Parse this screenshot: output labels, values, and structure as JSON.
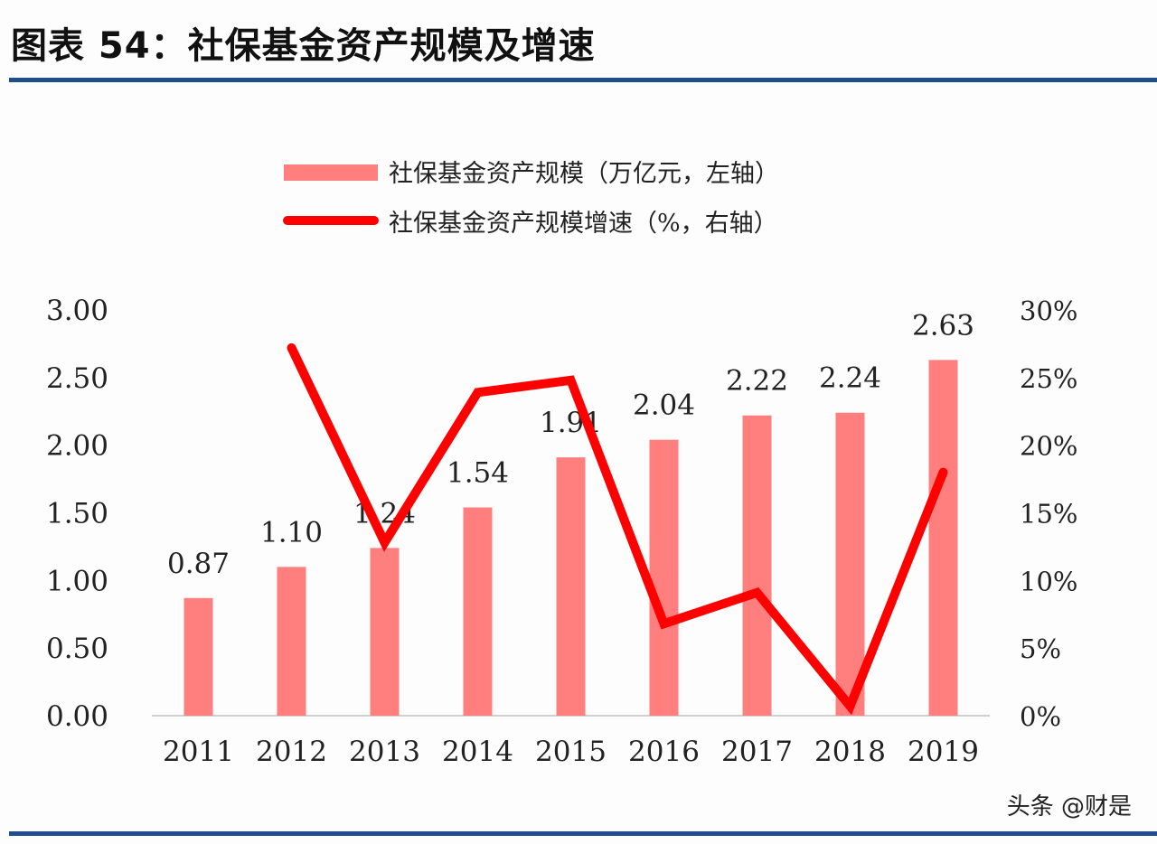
{
  "title": "图表 54：社保基金资产规模及增速",
  "watermark": "头条 @财是",
  "chart_data": {
    "type": "bar+line",
    "title": "",
    "categories": [
      "2011",
      "2012",
      "2013",
      "2014",
      "2015",
      "2016",
      "2017",
      "2018",
      "2019"
    ],
    "series": [
      {
        "name": "社保基金资产规模（万亿元，左轴）",
        "type": "bar",
        "axis": "left",
        "color": "#ff7f7f",
        "values": [
          0.87,
          1.1,
          1.24,
          1.54,
          1.91,
          2.04,
          2.22,
          2.24,
          2.63
        ],
        "labels": [
          "0.87",
          "1.10",
          "1.24",
          "1.54",
          "1.91",
          "2.04",
          "2.22",
          "2.24",
          "2.63"
        ]
      },
      {
        "name": "社保基金资产规模增速（%，右轴）",
        "type": "line",
        "axis": "right",
        "color": "#ff0000",
        "values": [
          null,
          27.2,
          12.8,
          23.9,
          24.8,
          6.8,
          9.1,
          0.7,
          18.0
        ]
      }
    ],
    "left_axis": {
      "ylim": [
        0,
        3
      ],
      "ticks": [
        "0.00",
        "0.50",
        "1.00",
        "1.50",
        "2.00",
        "2.50",
        "3.00"
      ]
    },
    "right_axis": {
      "ylim": [
        0,
        30
      ],
      "ticks": [
        "0%",
        "5%",
        "10%",
        "15%",
        "20%",
        "25%",
        "30%"
      ]
    },
    "grid": false,
    "legend": "top-center"
  }
}
